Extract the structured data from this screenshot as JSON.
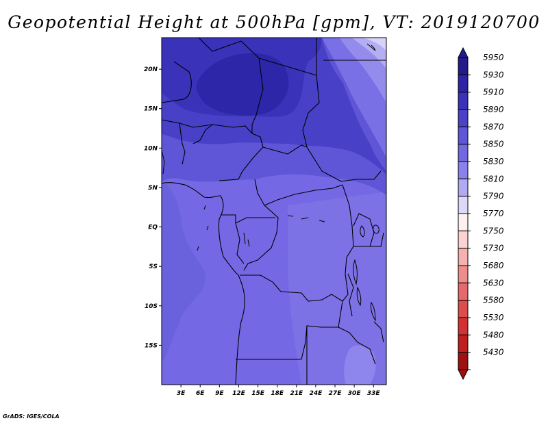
{
  "title": "Geopotential Height at 500hPa [gpm], VT: 2019120700",
  "footer": "GrADS: IGES/COLA",
  "map": {
    "variable": "Geopotential Height at 500hPa",
    "units": "gpm",
    "valid_time": "2019120700",
    "region": "Central Africa",
    "lon_range": [
      0,
      35
    ],
    "lat_range": [
      -20,
      24
    ],
    "lat_ticks": [
      {
        "value": 20,
        "label": "20N"
      },
      {
        "value": 15,
        "label": "15N"
      },
      {
        "value": 10,
        "label": "10N"
      },
      {
        "value": 5,
        "label": "5N"
      },
      {
        "value": 0,
        "label": "EQ"
      },
      {
        "value": -5,
        "label": "5S"
      },
      {
        "value": -10,
        "label": "10S"
      },
      {
        "value": -15,
        "label": "15S"
      }
    ],
    "lon_ticks": [
      {
        "value": 3,
        "label": "3E"
      },
      {
        "value": 6,
        "label": "6E"
      },
      {
        "value": 9,
        "label": "9E"
      },
      {
        "value": 12,
        "label": "12E"
      },
      {
        "value": 15,
        "label": "15E"
      },
      {
        "value": 18,
        "label": "18E"
      },
      {
        "value": 21,
        "label": "21E"
      },
      {
        "value": 24,
        "label": "24E"
      },
      {
        "value": 27,
        "label": "27E"
      },
      {
        "value": 30,
        "label": "30E"
      },
      {
        "value": 33,
        "label": "33E"
      }
    ]
  },
  "colorbar": {
    "levels": [
      {
        "value": 5950,
        "color": "#241a8c"
      },
      {
        "value": 5930,
        "color": "#2e24a6"
      },
      {
        "value": 5910,
        "color": "#3a32b8"
      },
      {
        "value": 5890,
        "color": "#4a42c8"
      },
      {
        "value": 5870,
        "color": "#5e56d6"
      },
      {
        "value": 5850,
        "color": "#7268e2"
      },
      {
        "value": 5830,
        "color": "#8a82ea"
      },
      {
        "value": 5810,
        "color": "#b0aaf2"
      },
      {
        "value": 5790,
        "color": "#dcd8fa"
      },
      {
        "value": 5770,
        "color": "#fff0f0"
      },
      {
        "value": 5750,
        "color": "#fcd2d2"
      },
      {
        "value": 5730,
        "color": "#f7b0b0"
      },
      {
        "value": 5680,
        "color": "#ef8c8c"
      },
      {
        "value": 5630,
        "color": "#e76a6a"
      },
      {
        "value": 5580,
        "color": "#de4c4c"
      },
      {
        "value": 5530,
        "color": "#d43232"
      },
      {
        "value": 5480,
        "color": "#c01e1e"
      },
      {
        "value": 5430,
        "color": "#a01010"
      }
    ]
  }
}
